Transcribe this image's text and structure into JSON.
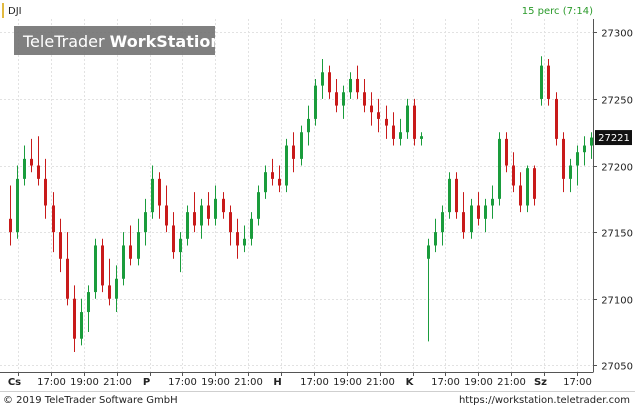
{
  "header": {
    "symbol": "DJI",
    "interval": "15 perc (7:14)",
    "watermark_light": "TeleTrader ",
    "watermark_bold": "WorkStation"
  },
  "footer": {
    "copyright": "© 2019 TeleTrader Software GmbH",
    "url": "https://workstation.teletrader.com"
  },
  "colors": {
    "up": "#1a9c3c",
    "down": "#c81a1a",
    "grid": "#e2e2e2",
    "axis": "#555555",
    "text": "#222222",
    "interval": "#2a9a2a",
    "last_badge_bg": "#111111",
    "last_badge_fg": "#ffffff"
  },
  "chart_data": {
    "type": "candlestick",
    "ylim": [
      27045,
      27310
    ],
    "y_ticks": [
      "27050",
      "27100",
      "27150",
      "27200",
      "27250",
      "27300"
    ],
    "x_ticks": [
      "Cs",
      "17:00",
      "19:00",
      "21:00",
      "P",
      "17:00",
      "19:00",
      "21:00",
      "H",
      "17:00",
      "19:00",
      "21:00",
      "K",
      "17:00",
      "19:00",
      "21:00",
      "Sz",
      "17:00"
    ],
    "x_tick_day_marker": [
      true,
      false,
      false,
      false,
      true,
      false,
      false,
      false,
      true,
      false,
      false,
      false,
      true,
      false,
      false,
      false,
      true,
      false
    ],
    "last_value": "27221",
    "candles": [
      [
        27160,
        27185,
        27140,
        27150
      ],
      [
        27150,
        27200,
        27145,
        27190
      ],
      [
        27190,
        27215,
        27185,
        27205
      ],
      [
        27205,
        27220,
        27195,
        27200
      ],
      [
        27200,
        27222,
        27185,
        27190
      ],
      [
        27190,
        27205,
        27160,
        27170
      ],
      [
        27170,
        27180,
        27135,
        27150
      ],
      [
        27150,
        27160,
        27120,
        27130
      ],
      [
        27130,
        27150,
        27095,
        27100
      ],
      [
        27100,
        27110,
        27060,
        27070
      ],
      [
        27070,
        27100,
        27065,
        27090
      ],
      [
        27090,
        27110,
        27075,
        27105
      ],
      [
        27105,
        27145,
        27100,
        27140
      ],
      [
        27140,
        27145,
        27105,
        27110
      ],
      [
        27110,
        27130,
        27095,
        27100
      ],
      [
        27100,
        27125,
        27090,
        27115
      ],
      [
        27115,
        27150,
        27110,
        27140
      ],
      [
        27140,
        27155,
        27125,
        27130
      ],
      [
        27130,
        27160,
        27125,
        27150
      ],
      [
        27150,
        27175,
        27140,
        27165
      ],
      [
        27165,
        27200,
        27160,
        27190
      ],
      [
        27190,
        27195,
        27160,
        27170
      ],
      [
        27170,
        27185,
        27150,
        27155
      ],
      [
        27155,
        27165,
        27130,
        27135
      ],
      [
        27135,
        27150,
        27120,
        27145
      ],
      [
        27145,
        27170,
        27140,
        27165
      ],
      [
        27165,
        27180,
        27150,
        27155
      ],
      [
        27155,
        27175,
        27145,
        27170
      ],
      [
        27170,
        27180,
        27155,
        27160
      ],
      [
        27160,
        27185,
        27155,
        27175
      ],
      [
        27175,
        27180,
        27160,
        27165
      ],
      [
        27165,
        27170,
        27140,
        27150
      ],
      [
        27150,
        27160,
        27130,
        27140
      ],
      [
        27140,
        27155,
        27135,
        27145
      ],
      [
        27145,
        27165,
        27140,
        27160
      ],
      [
        27160,
        27185,
        27155,
        27180
      ],
      [
        27180,
        27200,
        27175,
        27195
      ],
      [
        27195,
        27205,
        27185,
        27190
      ],
      [
        27190,
        27200,
        27180,
        27185
      ],
      [
        27185,
        27220,
        27180,
        27215
      ],
      [
        27215,
        27225,
        27195,
        27205
      ],
      [
        27205,
        27230,
        27200,
        27225
      ],
      [
        27225,
        27245,
        27215,
        27235
      ],
      [
        27235,
        27265,
        27230,
        27260
      ],
      [
        27260,
        27280,
        27250,
        27270
      ],
      [
        27270,
        27275,
        27250,
        27255
      ],
      [
        27255,
        27265,
        27240,
        27245
      ],
      [
        27245,
        27260,
        27235,
        27255
      ],
      [
        27255,
        27270,
        27250,
        27265
      ],
      [
        27265,
        27275,
        27250,
        27255
      ],
      [
        27255,
        27265,
        27240,
        27245
      ],
      [
        27245,
        27255,
        27230,
        27240
      ],
      [
        27240,
        27250,
        27225,
        27235
      ],
      [
        27235,
        27245,
        27220,
        27230
      ],
      [
        27230,
        27240,
        27215,
        27220
      ],
      [
        27220,
        27235,
        27215,
        27225
      ],
      [
        27225,
        27250,
        27220,
        27245
      ],
      [
        27245,
        27250,
        27215,
        27220
      ],
      [
        27220,
        27225,
        27215,
        27222
      ],
      [
        27130,
        27145,
        27068,
        27140
      ],
      [
        27140,
        27160,
        27135,
        27150
      ],
      [
        27150,
        27170,
        27140,
        27165
      ],
      [
        27165,
        27195,
        27160,
        27190
      ],
      [
        27190,
        27195,
        27160,
        27165
      ],
      [
        27165,
        27180,
        27145,
        27150
      ],
      [
        27150,
        27175,
        27145,
        27170
      ],
      [
        27170,
        27180,
        27155,
        27160
      ],
      [
        27160,
        27175,
        27150,
        27170
      ],
      [
        27170,
        27185,
        27160,
        27175
      ],
      [
        27175,
        27225,
        27170,
        27220
      ],
      [
        27220,
        27225,
        27195,
        27200
      ],
      [
        27200,
        27210,
        27180,
        27185
      ],
      [
        27185,
        27195,
        27165,
        27170
      ],
      [
        27170,
        27200,
        27165,
        27198
      ],
      [
        27198,
        27200,
        27170,
        27175
      ],
      [
        27250,
        27282,
        27245,
        27275
      ],
      [
        27275,
        27280,
        27245,
        27250
      ],
      [
        27250,
        27255,
        27215,
        27220
      ],
      [
        27220,
        27225,
        27180,
        27190
      ],
      [
        27190,
        27205,
        27180,
        27200
      ],
      [
        27200,
        27215,
        27185,
        27210
      ],
      [
        27210,
        27222,
        27200,
        27215
      ],
      [
        27215,
        27225,
        27205,
        27221
      ]
    ]
  }
}
